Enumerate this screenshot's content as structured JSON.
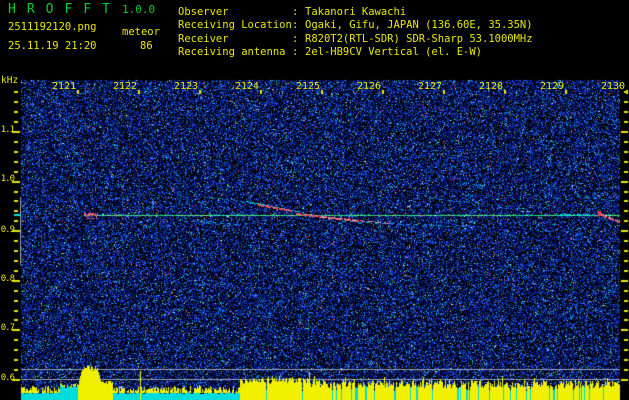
{
  "app": {
    "title": "HROFFT",
    "version": "1.0.0",
    "filename": "2511192120.png",
    "mode": "meteor",
    "timestamp": "25.11.19 21:20",
    "echo_count": "86",
    "separator": ":",
    "station_info": [
      {
        "label": "Observer",
        "value": "Takanori Kawachi"
      },
      {
        "label": "Receiving Location",
        "value": "Ogaki, Gifu, JAPAN (136.60E, 35.35N)"
      },
      {
        "label": "Receiver",
        "value": "R820T2(RTL-SDR) SDR-Sharp 53.1000MHz"
      },
      {
        "label": "Receiving antenna",
        "value": "2el-HB9CV Vertical (el. E-W)"
      }
    ]
  },
  "chart_data": {
    "type": "heatmap",
    "title": "HROFFT radio meteor echo spectrogram",
    "freq_axis": {
      "unit": "kHz",
      "tick_labels": [
        "1.1",
        "1.0",
        "0.9",
        "0.8",
        "0.7",
        "0.6"
      ],
      "range_khz": [
        0.56,
        1.2
      ]
    },
    "time_axis": {
      "labels": [
        "2121",
        "2122",
        "2123",
        "2124",
        "2125",
        "2126",
        "2127",
        "2128",
        "2129",
        "2130"
      ],
      "tick_interval_min": 1
    },
    "carrier_line_khz": 0.93,
    "events": [
      {
        "time": "2121",
        "freq_khz": 0.93,
        "desc": "strong overdense echo head (red blob), start of continuous carrier trace"
      },
      {
        "time": "2124-2126",
        "freq_khz": "0.90-0.93",
        "desc": "cluster of Doppler-shifted meteor echo trails sloping downward"
      },
      {
        "time": "2130",
        "freq_khz": 0.93,
        "desc": "short echo with small red enhancement and pink trail"
      }
    ],
    "amplitude_strip": {
      "desc": "signal level vs time at bottom",
      "burst_at": "2121 (tall yellow burst)",
      "elevated_from": "2124 to end, with cyan dropout lines",
      "reference_lines": 2
    },
    "colors": {
      "noise_blue": "#1432c8",
      "carrier_green": "#46e878",
      "echo_red": "#f03c50",
      "echo_pink": "#f08cb4",
      "amp_yellow": "#f0f000",
      "amp_cyan": "#00dcdc",
      "label_yellow": "#e8e800",
      "title_green": "#00cc33"
    }
  }
}
